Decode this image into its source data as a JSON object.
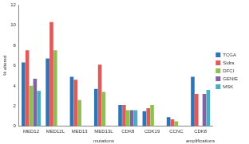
{
  "chart_data": {
    "type": "bar",
    "categories": [
      "MED12",
      "MED12L",
      "MED13",
      "MED13L",
      "CDK8",
      "CDK19",
      "CCNC",
      "CDK8"
    ],
    "series": [
      {
        "name": "TCGA",
        "color": "#2e75b6",
        "values": [
          6.3,
          6.7,
          4.9,
          3.7,
          2.1,
          1.5,
          0.9,
          4.9
        ]
      },
      {
        "name": "Sidra",
        "color": "#e05a5a",
        "values": [
          7.5,
          10.3,
          4.6,
          6.1,
          2.1,
          1.8,
          0.7,
          3.2
        ]
      },
      {
        "name": "DFCI",
        "color": "#8fc04f",
        "values": [
          4.0,
          7.5,
          2.6,
          3.4,
          1.6,
          2.1,
          0.5,
          null
        ]
      },
      {
        "name": "GENIE",
        "color": "#8064a2",
        "values": [
          4.7,
          null,
          null,
          null,
          1.6,
          null,
          null,
          3.2
        ]
      },
      {
        "name": "MSK",
        "color": "#4bacc6",
        "values": [
          3.5,
          null,
          null,
          null,
          1.6,
          null,
          null,
          3.6
        ]
      }
    ],
    "y_label": "% altered",
    "annotations": [
      {
        "text": "mutations",
        "category_index": 3
      },
      {
        "text": "amplifications",
        "category_index": 7
      }
    ],
    "ylim": [
      0,
      12
    ],
    "yticks": [
      0,
      2,
      4,
      6,
      8,
      10,
      12
    ],
    "grid": false,
    "legend": "right"
  }
}
